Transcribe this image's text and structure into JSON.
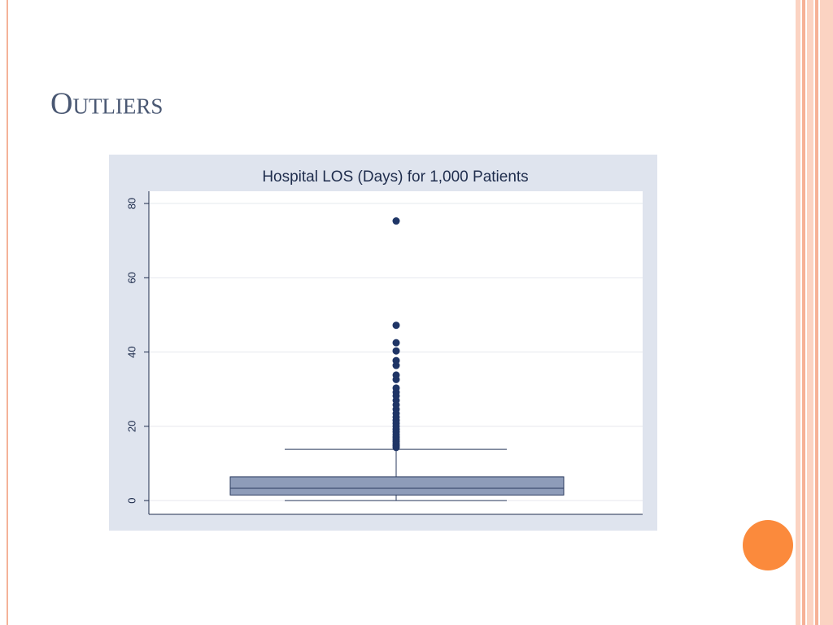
{
  "slide": {
    "title": "Outliers"
  },
  "chart_data": {
    "type": "box",
    "title": "Hospital LOS (Days) for 1,000 Patients",
    "ylim": [
      -3.7,
      83.3
    ],
    "yticks": [
      0,
      20,
      40,
      60,
      80
    ],
    "grid": true,
    "color": "#8e9cb9",
    "outlier_color": "#1f3566",
    "box": {
      "min": 0,
      "q1": 1.5,
      "median": 3.3,
      "q3": 6.4,
      "max": 13.8,
      "outliers": [
        14.3,
        14.8,
        15.3,
        15.9,
        16.5,
        17.1,
        17.8,
        18.5,
        19.2,
        20,
        20.8,
        21.6,
        22.5,
        23.5,
        24.6,
        25.8,
        27,
        28.2,
        29.2,
        30.3,
        32.6,
        33.8,
        36.4,
        37.7,
        40.3,
        42.5,
        47.2,
        75.3
      ]
    }
  }
}
